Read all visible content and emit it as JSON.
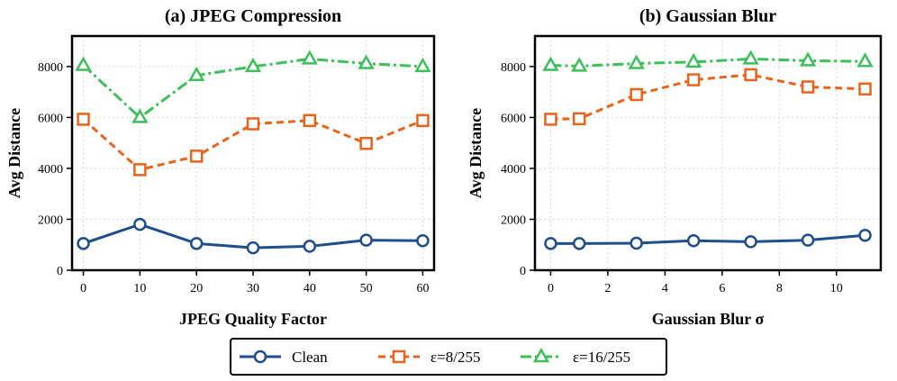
{
  "chart_data": [
    {
      "type": "line",
      "title": "(a) JPEG Compression",
      "xlabel": "JPEG Quality Factor",
      "ylabel": "Avg Distance",
      "x": [
        0,
        10,
        20,
        30,
        40,
        50,
        60
      ],
      "xlim": [
        -2,
        62
      ],
      "ylim": [
        0,
        9200
      ],
      "xticks": [
        0,
        10,
        20,
        30,
        40,
        50,
        60
      ],
      "yticks": [
        0,
        2000,
        4000,
        6000,
        8000
      ],
      "grid": true,
      "series": [
        {
          "name": "Clean",
          "values": [
            1050,
            1800,
            1050,
            880,
            940,
            1180,
            1160
          ]
        },
        {
          "name": "ε=8/255",
          "values": [
            5930,
            3950,
            4480,
            5750,
            5880,
            4980,
            5880
          ]
        },
        {
          "name": "ε=16/255",
          "values": [
            8050,
            6000,
            7650,
            8000,
            8300,
            8120,
            8000
          ]
        }
      ]
    },
    {
      "type": "line",
      "title": "(b) Gaussian Blur",
      "xlabel": "Gaussian Blur σ",
      "ylabel": "Avg Distance",
      "x": [
        0,
        1,
        3,
        5,
        7,
        9,
        11
      ],
      "xlim": [
        -0.55,
        11.55
      ],
      "ylim": [
        0,
        9200
      ],
      "xticks": [
        0,
        2,
        4,
        6,
        8,
        10
      ],
      "yticks": [
        0,
        2000,
        4000,
        6000,
        8000
      ],
      "grid": true,
      "series": [
        {
          "name": "Clean",
          "values": [
            1050,
            1050,
            1060,
            1160,
            1120,
            1180,
            1370
          ]
        },
        {
          "name": "ε=8/255",
          "values": [
            5930,
            5950,
            6900,
            7480,
            7680,
            7200,
            7120
          ]
        },
        {
          "name": "ε=16/255",
          "values": [
            8050,
            8020,
            8120,
            8180,
            8300,
            8230,
            8200
          ]
        }
      ]
    }
  ],
  "legend": {
    "placement": "bottom-center",
    "entries": [
      {
        "label": "Clean",
        "color": "#1f4e8c",
        "marker": "circle",
        "dash": "solid"
      },
      {
        "label": "ε=8/255",
        "color": "#e8641c",
        "marker": "square",
        "dash": "dashed"
      },
      {
        "label": "ε=16/255",
        "color": "#3fbf5a",
        "marker": "triangle",
        "dash": "dash-dot"
      }
    ]
  },
  "colors": {
    "clean": "#1f4e8c",
    "eps8": "#e8641c",
    "eps16": "#3fbf5a",
    "grid": "#d9d9d9"
  }
}
